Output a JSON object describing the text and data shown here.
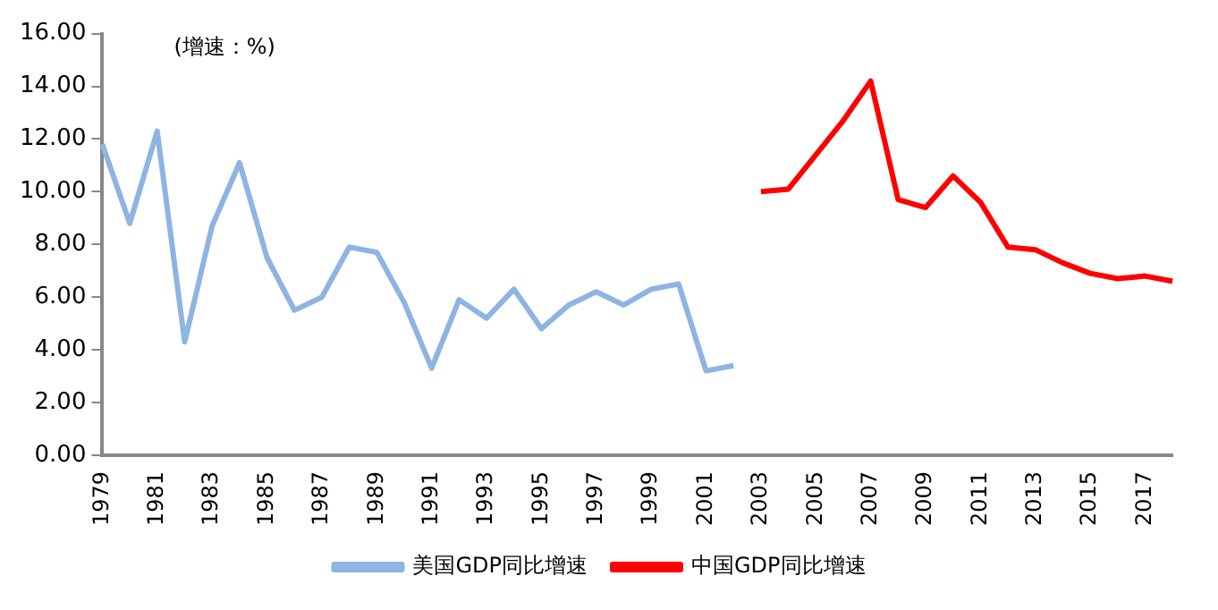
{
  "chart_data": {
    "type": "line",
    "categories": [
      "1979",
      null,
      "1981",
      null,
      "1983",
      null,
      "1985",
      null,
      "1987",
      null,
      "1989",
      null,
      "1991",
      null,
      "1993",
      null,
      "1995",
      null,
      "1997",
      null,
      "1999",
      null,
      "2001",
      null,
      "2003",
      null,
      "2005",
      null,
      "2007",
      null,
      "2009",
      null,
      "2011",
      null,
      "2013",
      null,
      "2015",
      null,
      "2017",
      null
    ],
    "series": [
      {
        "name": "美国GDP同比增速",
        "color": "#8eb4e3",
        "values": [
          11.8,
          8.8,
          12.3,
          4.3,
          8.7,
          11.1,
          7.5,
          5.5,
          6.0,
          7.9,
          7.7,
          5.8,
          3.3,
          5.9,
          5.2,
          6.3,
          4.8,
          5.7,
          6.2,
          5.7,
          6.3,
          6.5,
          3.2,
          3.4,
          null,
          null,
          null,
          null,
          null,
          null,
          null,
          null,
          null,
          null,
          null,
          null,
          null,
          null,
          null,
          null
        ]
      },
      {
        "name": "中国GDP同比增速",
        "color": "#ff0000",
        "values": [
          null,
          null,
          null,
          null,
          null,
          null,
          null,
          null,
          null,
          null,
          null,
          null,
          null,
          null,
          null,
          null,
          null,
          null,
          null,
          null,
          null,
          null,
          null,
          null,
          10.0,
          10.1,
          11.4,
          12.7,
          14.2,
          9.7,
          9.4,
          10.6,
          9.6,
          7.9,
          7.8,
          7.3,
          6.9,
          6.7,
          6.8,
          6.6
        ]
      }
    ],
    "ylim": [
      0,
      16
    ],
    "yticks": [
      {
        "value": 0,
        "label": "0.00"
      },
      {
        "value": 2,
        "label": "2.00"
      },
      {
        "value": 4,
        "label": "4.00"
      },
      {
        "value": 6,
        "label": "6.00"
      },
      {
        "value": 8,
        "label": "8.00"
      },
      {
        "value": 10,
        "label": "10.00"
      },
      {
        "value": 12,
        "label": "12.00"
      },
      {
        "value": 14,
        "label": "14.00"
      },
      {
        "value": 16,
        "label": "16.00"
      }
    ],
    "annotations": [
      "(增速：%)"
    ],
    "grid": false,
    "legend": "bottom",
    "marker": "none",
    "line_style": "solid"
  }
}
